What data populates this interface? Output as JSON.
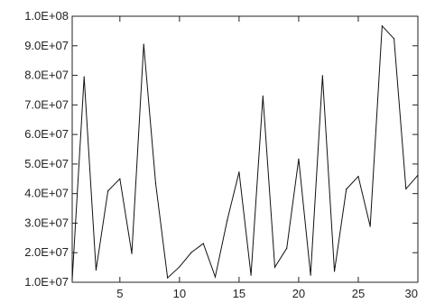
{
  "chart_data": {
    "type": "line",
    "title": "",
    "xlabel": "",
    "ylabel": "",
    "xlim": [
      1,
      30
    ],
    "ylim": [
      10000000,
      100000000
    ],
    "grid": false,
    "legend": "none",
    "x_ticks": [
      5,
      10,
      15,
      20,
      25,
      30
    ],
    "x_tick_labels": [
      "5",
      "10",
      "15",
      "20",
      "25",
      "30"
    ],
    "y_ticks": [
      10000000,
      20000000,
      30000000,
      40000000,
      50000000,
      60000000,
      70000000,
      80000000,
      90000000,
      100000000
    ],
    "y_tick_labels": [
      "1.0E+07",
      "2.0E+07",
      "3.0E+07",
      "4.0E+07",
      "5.0E+07",
      "6.0E+07",
      "7.0E+07",
      "8.0E+07",
      "9.0E+07",
      "1.0E+08"
    ],
    "x": [
      1,
      2,
      3,
      4,
      5,
      6,
      7,
      8,
      9,
      10,
      11,
      12,
      13,
      14,
      15,
      16,
      17,
      18,
      19,
      20,
      21,
      22,
      23,
      24,
      25,
      26,
      27,
      28,
      29,
      30
    ],
    "series": [
      {
        "values": [
          10800000,
          79500000,
          14100000,
          40900000,
          45000000,
          19700000,
          90500000,
          43500000,
          11500000,
          15200000,
          20100000,
          23100000,
          11800000,
          30900000,
          47300000,
          12400000,
          73000000,
          15100000,
          21500000,
          51700000,
          12400000,
          79900000,
          13700000,
          41500000,
          45800000,
          28900000,
          96700000,
          92400000,
          41600000,
          46200000
        ]
      }
    ],
    "colors": {
      "line": "#111111",
      "axis": "#222222",
      "background": "#ffffff"
    }
  }
}
